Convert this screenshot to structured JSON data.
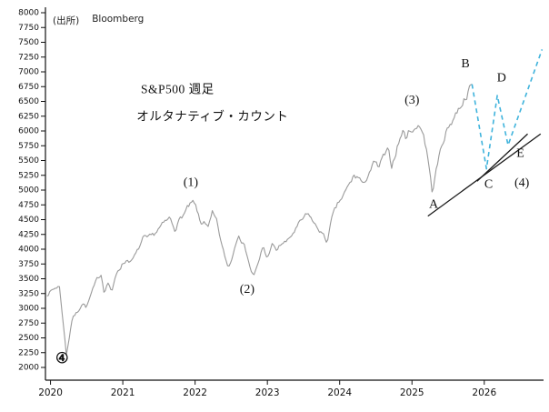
{
  "source_label": {
    "prefix": "(出所)",
    "name": "Bloomberg"
  },
  "chart_data": {
    "type": "line",
    "title": "S&P500 週足 オルタナティブ・カウント",
    "title_lines": [
      {
        "text": "S&P500 週足",
        "x": 2021.25,
        "y": 6640
      },
      {
        "text": "オルタナティブ・カウント",
        "x": 2021.19,
        "y": 6180
      }
    ],
    "x_range": [
      2019.93,
      2026.82
    ],
    "x_ticks": [
      2020,
      2021,
      2022,
      2023,
      2024,
      2025,
      2026
    ],
    "y_min": 2000,
    "y_max": 8000,
    "y_step": 250,
    "series": [
      {
        "name": "sp500-weekly-price",
        "color": "#9a9a9a",
        "style": "solid",
        "anchors": [
          [
            2019.95,
            3240
          ],
          [
            2020.04,
            3320
          ],
          [
            2020.12,
            3390
          ],
          [
            2020.16,
            2950
          ],
          [
            2020.22,
            2210
          ],
          [
            2020.3,
            2830
          ],
          [
            2020.38,
            2950
          ],
          [
            2020.44,
            3100
          ],
          [
            2020.5,
            3020
          ],
          [
            2020.56,
            3230
          ],
          [
            2020.65,
            3500
          ],
          [
            2020.7,
            3580
          ],
          [
            2020.74,
            3300
          ],
          [
            2020.8,
            3450
          ],
          [
            2020.85,
            3270
          ],
          [
            2020.92,
            3620
          ],
          [
            2021.0,
            3760
          ],
          [
            2021.07,
            3830
          ],
          [
            2021.12,
            3790
          ],
          [
            2021.2,
            3950
          ],
          [
            2021.28,
            4180
          ],
          [
            2021.35,
            4170
          ],
          [
            2021.42,
            4230
          ],
          [
            2021.5,
            4350
          ],
          [
            2021.58,
            4440
          ],
          [
            2021.65,
            4520
          ],
          [
            2021.72,
            4350
          ],
          [
            2021.8,
            4530
          ],
          [
            2021.85,
            4600
          ],
          [
            2021.9,
            4700
          ],
          [
            2021.97,
            4780
          ],
          [
            2022.02,
            4680
          ],
          [
            2022.08,
            4400
          ],
          [
            2022.13,
            4500
          ],
          [
            2022.18,
            4350
          ],
          [
            2022.24,
            4600
          ],
          [
            2022.3,
            4450
          ],
          [
            2022.38,
            4000
          ],
          [
            2022.46,
            3680
          ],
          [
            2022.52,
            3900
          ],
          [
            2022.6,
            4290
          ],
          [
            2022.66,
            4120
          ],
          [
            2022.72,
            3920
          ],
          [
            2022.78,
            3600
          ],
          [
            2022.82,
            3580
          ],
          [
            2022.88,
            3760
          ],
          [
            2022.94,
            4050
          ],
          [
            2023.0,
            3830
          ],
          [
            2023.06,
            4100
          ],
          [
            2023.12,
            3960
          ],
          [
            2023.2,
            4100
          ],
          [
            2023.28,
            4130
          ],
          [
            2023.36,
            4280
          ],
          [
            2023.44,
            4420
          ],
          [
            2023.52,
            4550
          ],
          [
            2023.58,
            4580
          ],
          [
            2023.66,
            4400
          ],
          [
            2023.74,
            4300
          ],
          [
            2023.82,
            4120
          ],
          [
            2023.9,
            4550
          ],
          [
            2023.98,
            4770
          ],
          [
            2024.06,
            4920
          ],
          [
            2024.14,
            5100
          ],
          [
            2024.2,
            5240
          ],
          [
            2024.28,
            5200
          ],
          [
            2024.33,
            5050
          ],
          [
            2024.4,
            5300
          ],
          [
            2024.48,
            5460
          ],
          [
            2024.54,
            5370
          ],
          [
            2024.6,
            5550
          ],
          [
            2024.67,
            5650
          ],
          [
            2024.72,
            5400
          ],
          [
            2024.8,
            5750
          ],
          [
            2024.87,
            6000
          ],
          [
            2024.92,
            5880
          ],
          [
            2024.98,
            6050
          ],
          [
            2025.04,
            6000
          ],
          [
            2025.1,
            6130
          ],
          [
            2025.16,
            5950
          ],
          [
            2025.22,
            5550
          ],
          [
            2025.28,
            4960
          ],
          [
            2025.33,
            5300
          ],
          [
            2025.4,
            5700
          ],
          [
            2025.46,
            5950
          ],
          [
            2025.52,
            6100
          ],
          [
            2025.6,
            6280
          ],
          [
            2025.68,
            6450
          ],
          [
            2025.75,
            6600
          ],
          [
            2025.83,
            6790
          ]
        ]
      },
      {
        "name": "projected-wave-path",
        "color": "#3fb3dc",
        "style": "dashed",
        "anchors": [
          [
            2025.83,
            6790
          ],
          [
            2026.03,
            5360
          ],
          [
            2026.18,
            6600
          ],
          [
            2026.33,
            5760
          ],
          [
            2026.8,
            7380
          ]
        ]
      }
    ],
    "trendlines": [
      {
        "x1": 2025.22,
        "y1": 4560,
        "x2": 2026.78,
        "y2": 5950,
        "color": "#1a1a1a"
      },
      {
        "x1": 2025.9,
        "y1": 5150,
        "x2": 2026.6,
        "y2": 5950,
        "color": "#1a1a1a"
      }
    ],
    "annotations": [
      {
        "text": "④",
        "x": 2020.16,
        "y": 2080,
        "size": 16,
        "bold": true
      },
      {
        "text": "(1)",
        "x": 2021.94,
        "y": 5070,
        "size": 14
      },
      {
        "text": "(2)",
        "x": 2022.72,
        "y": 3260,
        "size": 14
      },
      {
        "text": "(3)",
        "x": 2025.0,
        "y": 6460,
        "size": 14
      },
      {
        "text": "A",
        "x": 2025.3,
        "y": 4700,
        "size": 14
      },
      {
        "text": "B",
        "x": 2025.74,
        "y": 7080,
        "size": 14
      },
      {
        "text": "C",
        "x": 2026.06,
        "y": 5040,
        "size": 14
      },
      {
        "text": "D",
        "x": 2026.24,
        "y": 6840,
        "size": 14
      },
      {
        "text": "E",
        "x": 2026.5,
        "y": 5560,
        "size": 14
      },
      {
        "text": "(4)",
        "x": 2026.52,
        "y": 5060,
        "size": 14
      }
    ]
  }
}
